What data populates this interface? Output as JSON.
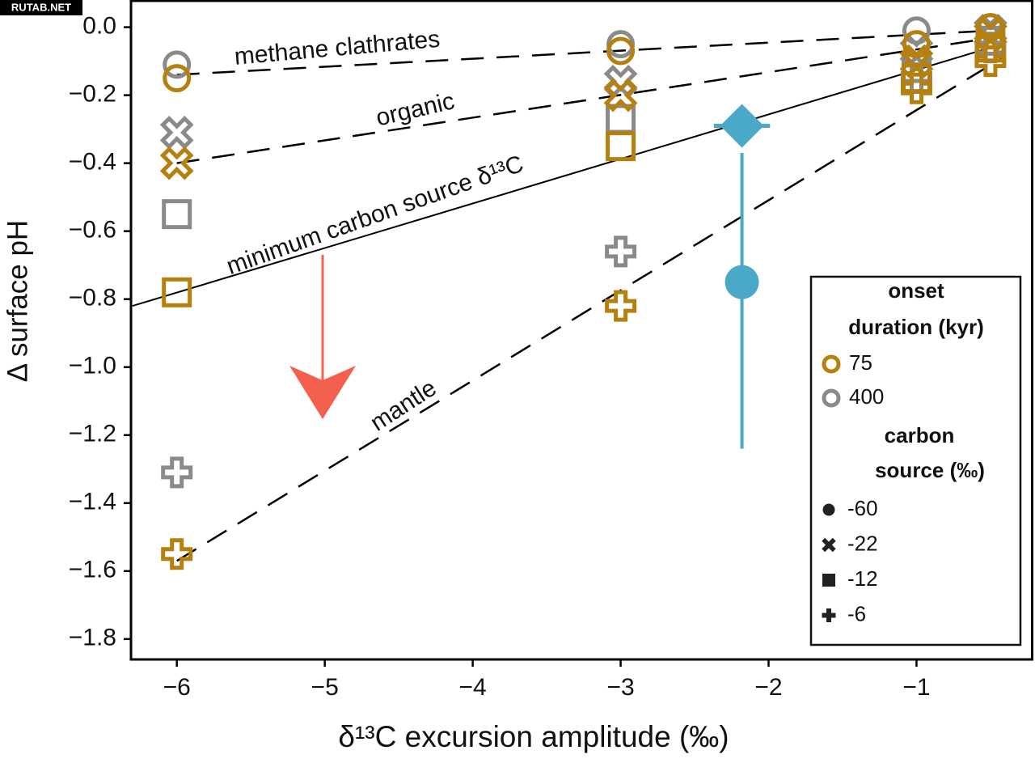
{
  "watermark": "RUTAB.NET",
  "chart_data": {
    "type": "scatter",
    "xlabel": "δ¹³C excursion amplitude (‰)",
    "ylabel": "Δ surface pH",
    "xlim": [
      -6.31,
      -0.21
    ],
    "ylim": [
      -1.86,
      0.08
    ],
    "xticks": [
      {
        "value": -6,
        "label": "−6"
      },
      {
        "value": -5,
        "label": "−5"
      },
      {
        "value": -4,
        "label": "−4"
      },
      {
        "value": -3,
        "label": "−3"
      },
      {
        "value": -2,
        "label": "−2"
      },
      {
        "value": -1,
        "label": "−1"
      }
    ],
    "yticks": [
      {
        "value": 0,
        "label": "0.0"
      },
      {
        "value": -0.2,
        "label": "−0.2"
      },
      {
        "value": -0.4,
        "label": "−0.4"
      },
      {
        "value": -0.6,
        "label": "−0.6"
      },
      {
        "value": -0.8,
        "label": "−0.8"
      },
      {
        "value": -1.0,
        "label": "−1.0"
      },
      {
        "value": -1.2,
        "label": "−1.2"
      },
      {
        "value": -1.4,
        "label": "−1.4"
      },
      {
        "value": -1.6,
        "label": "−1.6"
      },
      {
        "value": -1.8,
        "label": "−1.8"
      }
    ],
    "legend": {
      "duration_title": [
        "onset",
        "duration (kyr)"
      ],
      "durations": [
        {
          "label": "75",
          "color": "#b5800e"
        },
        {
          "label": "400",
          "color": "#8a8a8a"
        }
      ],
      "source_title": [
        "carbon",
        "source (‰)"
      ],
      "sources": [
        {
          "label": "-60",
          "marker": "circle"
        },
        {
          "label": "-22",
          "marker": "cross"
        },
        {
          "label": "-12",
          "marker": "square"
        },
        {
          "label": "-6",
          "marker": "plus"
        }
      ]
    },
    "series": [
      {
        "duration": 1,
        "source": 0,
        "x": [
          -6,
          -3,
          -1,
          -0.5
        ],
        "values": [
          -0.11,
          -0.05,
          -0.01,
          0.0
        ]
      },
      {
        "duration": 1,
        "source": 1,
        "x": [
          -6,
          -3,
          -1,
          -0.5
        ],
        "values": [
          -0.31,
          -0.16,
          -0.07,
          -0.01
        ]
      },
      {
        "duration": 1,
        "source": 2,
        "x": [
          -6,
          -3,
          -1,
          -0.5
        ],
        "values": [
          -0.55,
          -0.27,
          -0.12,
          -0.04
        ]
      },
      {
        "duration": 1,
        "source": 3,
        "x": [
          -6,
          -3,
          -1,
          -0.5
        ],
        "values": [
          -1.31,
          -0.66,
          -0.15,
          -0.06
        ]
      },
      {
        "duration": 0,
        "source": 0,
        "x": [
          -6,
          -3,
          -1,
          -0.5
        ],
        "values": [
          -0.15,
          -0.07,
          -0.05,
          0.0
        ]
      },
      {
        "duration": 0,
        "source": 1,
        "x": [
          -6,
          -3,
          -1,
          -0.5
        ],
        "values": [
          -0.4,
          -0.2,
          -0.1,
          -0.02
        ]
      },
      {
        "duration": 0,
        "source": 2,
        "x": [
          -6,
          -3,
          -1,
          -0.5
        ],
        "values": [
          -0.78,
          -0.35,
          -0.15,
          -0.06
        ]
      },
      {
        "duration": 0,
        "source": 3,
        "x": [
          -6,
          -3,
          -1,
          -0.5
        ],
        "values": [
          -1.55,
          -0.82,
          -0.18,
          -0.1
        ]
      }
    ],
    "lines": [
      {
        "label": "methane clathrates",
        "dashed": true,
        "x": [
          -6,
          -0.5
        ],
        "values": [
          -0.14,
          -0.01
        ]
      },
      {
        "label": "organic",
        "dashed": true,
        "x": [
          -6,
          -0.47
        ],
        "values": [
          -0.4,
          -0.03
        ]
      },
      {
        "label": "minimum carbon source δ¹³C",
        "dashed": false,
        "x": [
          -6.3,
          -0.5
        ],
        "values": [
          -0.82,
          -0.06
        ]
      },
      {
        "label": "mantle",
        "dashed": true,
        "x": [
          -6,
          -0.42
        ],
        "values": [
          -1.57,
          -0.09
        ]
      }
    ],
    "observations": {
      "color": "#4aa8c8",
      "diamond": {
        "x": -2.18,
        "y": -0.29,
        "xmin": -2.37,
        "xmax": -1.99
      },
      "circle": {
        "x": -2.18,
        "y": -0.75,
        "ymin": -1.24,
        "ymax": -0.37
      }
    }
  }
}
